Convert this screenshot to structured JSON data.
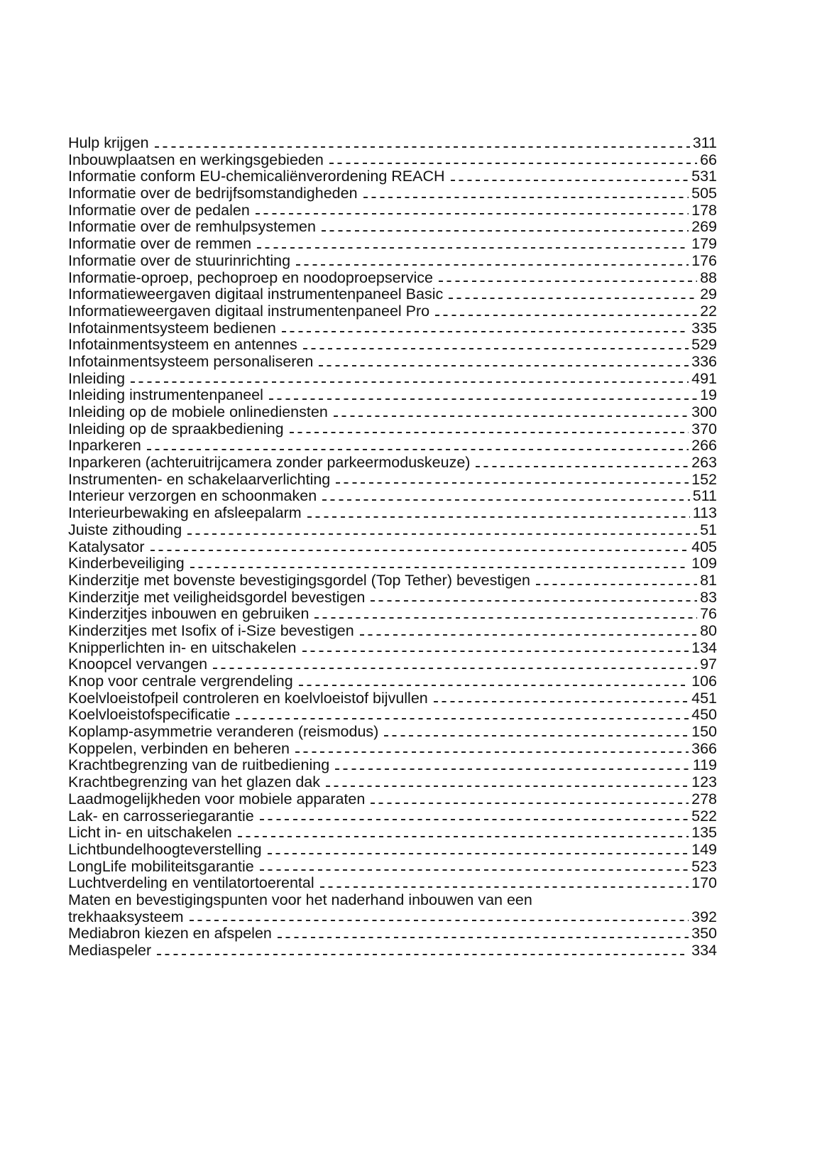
{
  "index": {
    "entries": [
      {
        "title": "Hulp krijgen",
        "page": "311"
      },
      {
        "title": "Inbouwplaatsen en werkingsgebieden",
        "page": "66"
      },
      {
        "title": "Informatie conform EU-chemicaliënverordening REACH",
        "page": "531"
      },
      {
        "title": "Informatie over de bedrijfsomstandigheden",
        "page": "505"
      },
      {
        "title": "Informatie over de pedalen",
        "page": "178"
      },
      {
        "title": "Informatie over de remhulpsystemen",
        "page": "269"
      },
      {
        "title": "Informatie over de remmen",
        "page": "179"
      },
      {
        "title": "Informatie over de stuurinrichting",
        "page": "176"
      },
      {
        "title": "Informatie-oproep, pechoproep en noodoproepservice",
        "page": "88"
      },
      {
        "title": "Informatieweergaven digitaal instrumentenpaneel Basic",
        "page": "29"
      },
      {
        "title": "Informatieweergaven digitaal instrumentenpaneel Pro",
        "page": "22"
      },
      {
        "title": "Infotainmentsysteem bedienen",
        "page": "335"
      },
      {
        "title": "Infotainmentsysteem en antennes",
        "page": "529"
      },
      {
        "title": "Infotainmentsysteem personaliseren",
        "page": "336"
      },
      {
        "title": "Inleiding",
        "page": "491"
      },
      {
        "title": "Inleiding instrumentenpaneel",
        "page": "19"
      },
      {
        "title": "Inleiding op de mobiele onlinediensten",
        "page": "300"
      },
      {
        "title": "Inleiding op de spraakbediening",
        "page": "370"
      },
      {
        "title": "Inparkeren",
        "page": "266"
      },
      {
        "title": "Inparkeren (achteruitrijcamera zonder parkeermoduskeuze)",
        "page": "263"
      },
      {
        "title": "Instrumenten- en schakelaarverlichting",
        "page": "152"
      },
      {
        "title": "Interieur verzorgen en schoonmaken",
        "page": "511"
      },
      {
        "title": "Interieurbewaking en afsleepalarm",
        "page": "113"
      },
      {
        "title": "Juiste zithouding",
        "page": "51"
      },
      {
        "title": "Katalysator",
        "page": "405"
      },
      {
        "title": "Kinderbeveiliging",
        "page": "109"
      },
      {
        "title": "Kinderzitje met bovenste bevestigingsgordel (Top Tether) bevestigen",
        "page": "81"
      },
      {
        "title": "Kinderzitje met veiligheidsgordel bevestigen",
        "page": "83"
      },
      {
        "title": "Kinderzitjes inbouwen en gebruiken",
        "page": "76"
      },
      {
        "title": "Kinderzitjes met Isofix of i-Size bevestigen",
        "page": "80"
      },
      {
        "title": "Knipperlichten in- en uitschakelen",
        "page": "134"
      },
      {
        "title": "Knoopcel vervangen",
        "page": "97"
      },
      {
        "title": "Knop voor centrale vergrendeling",
        "page": "106"
      },
      {
        "title": "Koelvloeistofpeil controleren en koelvloeistof bijvullen",
        "page": "451"
      },
      {
        "title": "Koelvloeistofspecificatie",
        "page": "450"
      },
      {
        "title": "Koplamp-asymmetrie veranderen (reismodus)",
        "page": "150"
      },
      {
        "title": "Koppelen, verbinden en beheren",
        "page": "366"
      },
      {
        "title": "Krachtbegrenzing van de ruitbediening",
        "page": "119"
      },
      {
        "title": "Krachtbegrenzing van het glazen dak",
        "page": "123"
      },
      {
        "title": "Laadmogelijkheden voor mobiele apparaten",
        "page": "278"
      },
      {
        "title": "Lak- en carrosseriegarantie",
        "page": "522"
      },
      {
        "title": "Licht in- en uitschakelen",
        "page": "135"
      },
      {
        "title": "Lichtbundelhoogteverstelling",
        "page": "149"
      },
      {
        "title": "LongLife mobiliteitsgarantie",
        "page": "523"
      },
      {
        "title": "Luchtverdeling en ventilatortoerental",
        "page": "170"
      },
      {
        "title": "Maten en bevestigingspunten voor het naderhand inbouwen van een",
        "title_cont": "trekhaaksysteem",
        "page": "392"
      },
      {
        "title": "Mediabron kiezen en afspelen",
        "page": "350"
      },
      {
        "title": "Mediaspeler",
        "page": "334"
      }
    ]
  }
}
